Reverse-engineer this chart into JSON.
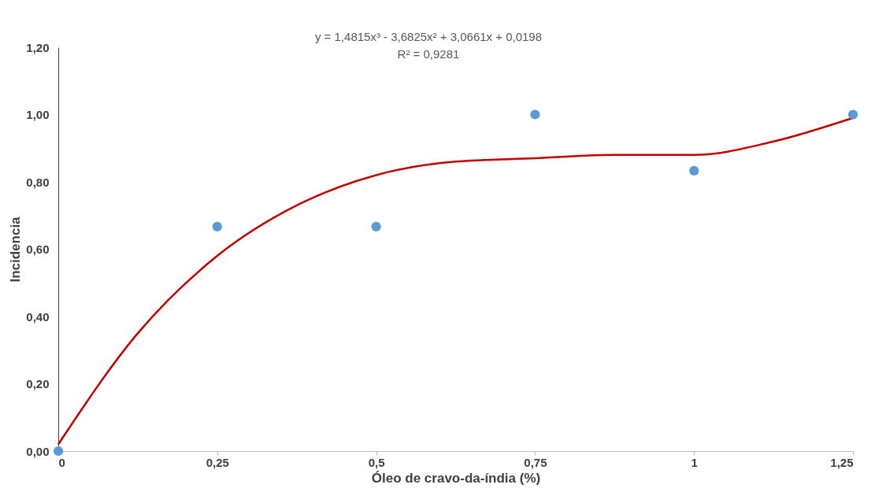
{
  "chart_data": {
    "type": "scatter",
    "xlabel": "Óleo de cravo-da-índia  (%)",
    "ylabel": "Incidencia",
    "xlim": [
      0,
      1.25
    ],
    "xticks": [
      0,
      {
        "value": 0.25,
        "label": "0,25"
      },
      {
        "value": 0.5,
        "label": "0,5"
      },
      {
        "value": 0.75,
        "label": "0,75"
      },
      1,
      {
        "value": 1.25,
        "label": "1,25"
      }
    ],
    "ylim": [
      0,
      1.2
    ],
    "yticks": [
      {
        "value": 0,
        "label": "0,00"
      },
      {
        "value": 0.2,
        "label": "0,20"
      },
      {
        "value": 0.4,
        "label": "0,40"
      },
      {
        "value": 0.6,
        "label": "0,60"
      },
      {
        "value": 0.8,
        "label": "0,80"
      },
      {
        "value": 1,
        "label": "1,00"
      },
      {
        "value": 1.2,
        "label": "1,20"
      }
    ],
    "grid": false,
    "x": [
      0,
      0.25,
      0.5,
      0.75,
      1,
      1.25
    ],
    "series": [
      {
        "marker": "circle",
        "color": "#5b9bd5",
        "values": [
          0,
          0.667,
          0.667,
          1.0,
          0.833,
          1.0
        ]
      },
      {
        "type": "line",
        "marker": "none",
        "color": "#c00000",
        "line_style": "solid",
        "x": [
          0,
          0.125,
          0.25,
          0.375,
          0.5,
          0.625,
          0.75,
          0.875,
          1.0,
          1.125,
          1.25
        ],
        "values": [
          0.02,
          0.35,
          0.58,
          0.73,
          0.82,
          0.86,
          0.87,
          0.88,
          0.88,
          0.92,
          0.99
        ]
      }
    ],
    "annotations": [
      "y = 1,4815x³ - 3,6825x² + 3,0661x + 0,0198",
      "R² = 0,9281"
    ]
  }
}
